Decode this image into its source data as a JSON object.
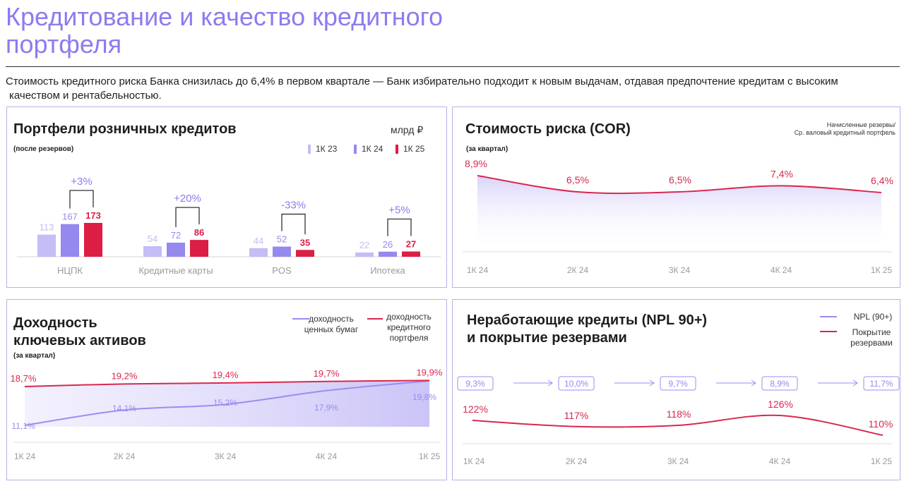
{
  "page": {
    "title": "Кредитование и качество кредитного портфеля",
    "subtitle_line1": "Стоимость кредитного риска Банка снизилась до 6,4% в первом квартале — Банк избирательно подходит к новым выдачам, отдавая предпочтение кредитам с высоким",
    "subtitle_line2": "качеством  и рентабельностью."
  },
  "colors": {
    "accent_purple": "#8b7cf0",
    "bar_1k23": "#c4bdf6",
    "bar_1k24": "#9588ef",
    "bar_1k25": "#dc1e45",
    "line_red": "#d8284e",
    "line_purple": "#9a8df0"
  },
  "panels": {
    "retail": {
      "title": "Портфели розничных кредитов",
      "note": "(после резервов)",
      "unit": "млрд ₽"
    },
    "cor": {
      "title": "Стоимость риска (COR)",
      "note": "(за квартал)",
      "definition_line1": "Начисленные резервы/",
      "definition_line2": "Ср. валовый кредитный портфель"
    },
    "yield": {
      "title_line1": "Доходность",
      "title_line2": "ключевых активов",
      "note": "(за квартал)"
    },
    "npl": {
      "title_line1": "Неработающие кредиты (NPL 90+)",
      "title_line2": "и покрытие резервами"
    }
  },
  "chart_data": [
    {
      "type": "bar",
      "title": "Портфели розничных кредитов",
      "unit": "млрд ₽",
      "categories": [
        "НЦПК",
        "Кредитные карты",
        "POS",
        "Ипотека"
      ],
      "series": [
        {
          "name": "1К 23",
          "values": [
            113,
            54,
            44,
            22
          ]
        },
        {
          "name": "1К 24",
          "values": [
            167,
            72,
            52,
            26
          ]
        },
        {
          "name": "1К 25",
          "values": [
            173,
            86,
            35,
            27
          ]
        }
      ],
      "changes": [
        "+3%",
        "+20%",
        "-33%",
        "+5%"
      ],
      "ylim": [
        0,
        200
      ],
      "legend": "top-right"
    },
    {
      "type": "line",
      "title": "Стоимость риска (COR)",
      "x": [
        "1К 24",
        "2К 24",
        "3К 24",
        "4К 24",
        "1К 25"
      ],
      "series": [
        {
          "values": [
            8.9,
            6.5,
            6.5,
            7.4,
            6.4
          ],
          "labels": [
            "8,9%",
            "6,5%",
            "6,5%",
            "7,4%",
            "6,4%"
          ]
        }
      ],
      "ylim": [
        0,
        10
      ]
    },
    {
      "type": "line",
      "title": "Доходность ключевых активов",
      "x": [
        "1К 24",
        "2К 24",
        "3К 24",
        "4К 24",
        "1К 25"
      ],
      "series": [
        {
          "name": "доходность ценных бумаг",
          "values": [
            11.1,
            14.1,
            15.2,
            17.9,
            19.8
          ],
          "labels": [
            "11,1%",
            "14,1%",
            "15,2%",
            "17,9%",
            "19,8%"
          ]
        },
        {
          "name": "доходность кредитного портфеля",
          "values": [
            18.7,
            19.2,
            19.4,
            19.7,
            19.9
          ],
          "labels": [
            "18,7%",
            "19,2%",
            "19,4%",
            "19,7%",
            "19,9%"
          ]
        }
      ],
      "ylim": [
        9,
        21
      ],
      "legend": "top-right"
    },
    {
      "type": "line",
      "title": "Неработающие кредиты (NPL 90+) и покрытие резервами",
      "x": [
        "1К 24",
        "2К 24",
        "3К 24",
        "4К 24",
        "1К 25"
      ],
      "series": [
        {
          "name": "NPL (90+)",
          "values": [
            9.3,
            10.0,
            9.7,
            8.9,
            11.7
          ],
          "labels": [
            "9,3%",
            "10,0%",
            "9,7%",
            "8,9%",
            "11,7%"
          ]
        },
        {
          "name": "Покрытие резервами",
          "values": [
            122,
            117,
            118,
            126,
            110
          ],
          "labels": [
            "122%",
            "117%",
            "118%",
            "126%",
            "110%"
          ]
        }
      ],
      "ylim": [
        100,
        140
      ],
      "legend": "top-right"
    }
  ]
}
